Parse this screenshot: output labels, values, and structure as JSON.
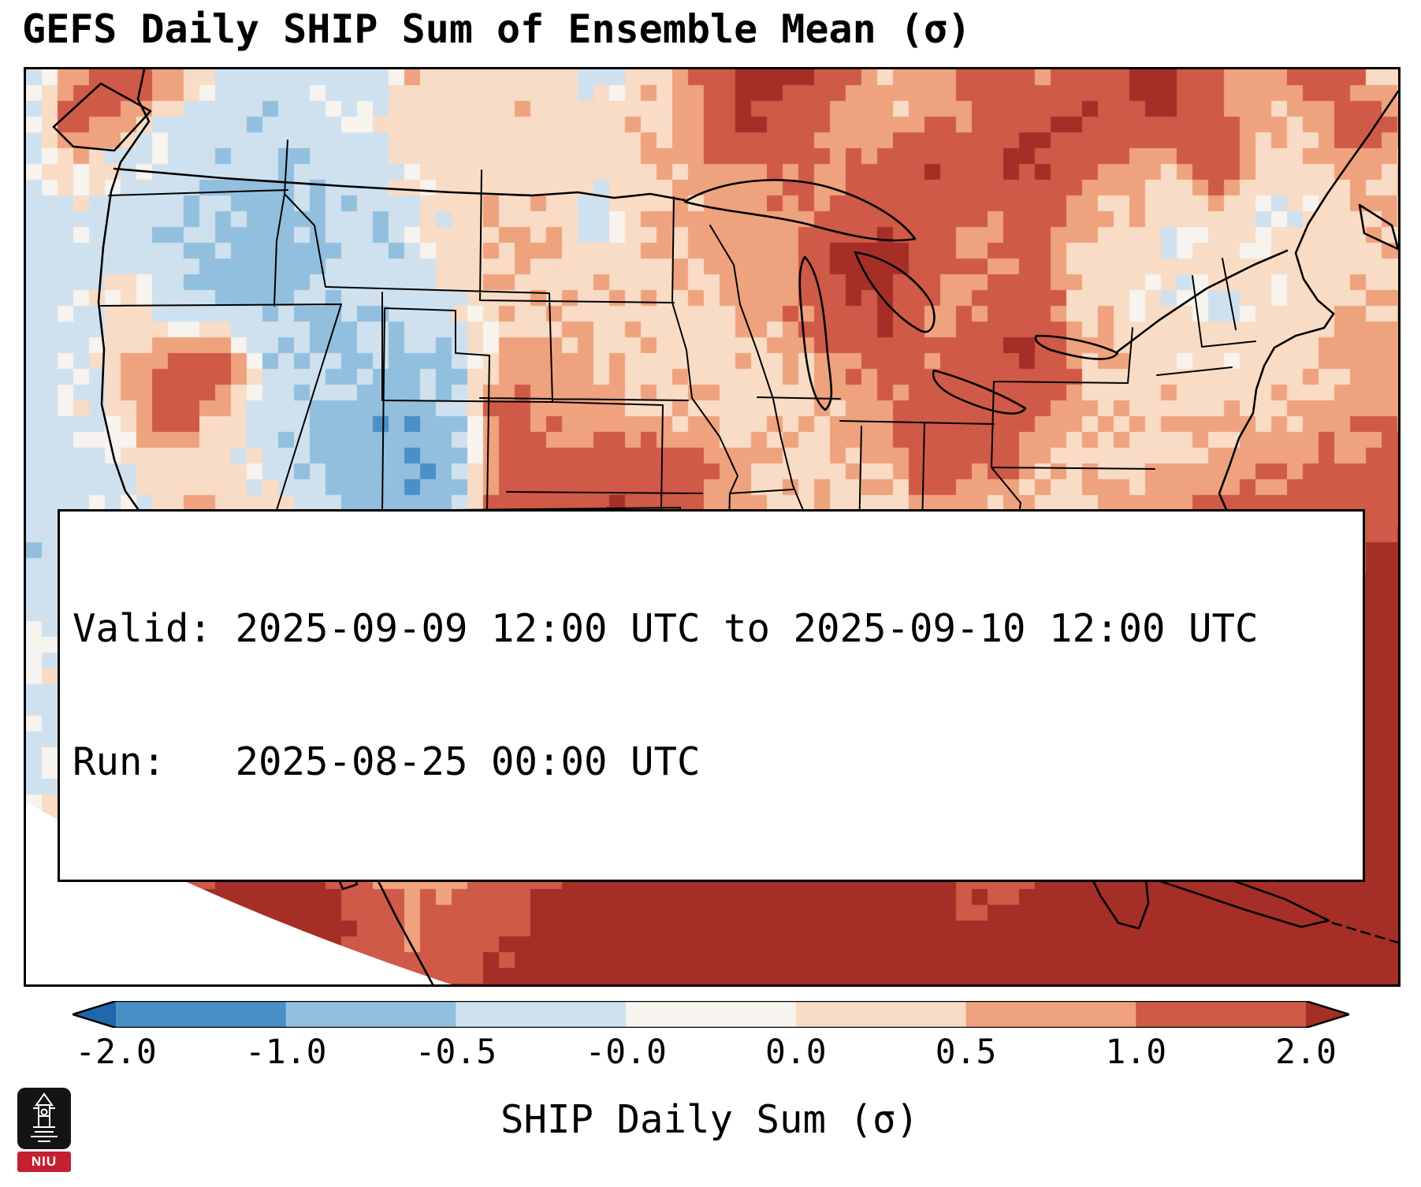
{
  "title": "GEFS Daily SHIP Sum of Ensemble Mean (σ)",
  "info_box": {
    "line1": "Valid: 2025-09-09 12:00 UTC to 2025-09-10 12:00 UTC",
    "line2": "Run:   2025-08-25 00:00 UTC"
  },
  "logo": {
    "text": "NIU",
    "bg": "#141414",
    "accent": "#c42032"
  },
  "chart_data": {
    "type": "heatmap",
    "title": "GEFS Daily SHIP Sum of Ensemble Mean (σ)",
    "region": "Contiguous United States with state borders, Mexico, Gulf of Mexico and western Atlantic",
    "colorbar_label": "SHIP Daily Sum (σ)",
    "colorbar_ticks": [
      "-2.0",
      "-1.0",
      "-0.5",
      "-0.0",
      "0.0",
      "0.5",
      "1.0",
      "2.0"
    ],
    "levels": [
      -2,
      -1,
      -0.5,
      -0.05,
      0.05,
      0.5,
      1,
      2
    ],
    "colors": [
      "#2166ac",
      "#4a90c6",
      "#92bfdd",
      "#cfe1ee",
      "#f7f3ee",
      "#f9dcc5",
      "#efa27e",
      "#cf5a47",
      "#a52f26"
    ],
    "valid": "2025-09-09 12:00 UTC to 2025-09-10 12:00 UTC",
    "run": "2025-08-25 00:00 UTC",
    "grid": {
      "cols": 30,
      "rows": 20,
      "approx": true,
      "values": [
        [
          -0.3,
          0.4,
          2.0,
          1.0,
          -0.2,
          -0.3,
          -0.2,
          -0.3,
          0.3,
          0.4,
          0.3,
          0.4,
          -0.2,
          0.4,
          1.0,
          2.4,
          2.6,
          1.4,
          0.6,
          0.8,
          1.6,
          0.8,
          1.2,
          2.4,
          2.2,
          1.0,
          0.4,
          1.6,
          0.6,
          -0.2
        ],
        [
          -0.3,
          1.4,
          0.8,
          -0.2,
          -0.3,
          -0.3,
          -0.3,
          -0.2,
          0.3,
          0.3,
          0.3,
          0.3,
          0.3,
          0.4,
          0.8,
          2.2,
          1.6,
          0.8,
          0.6,
          0.8,
          1.0,
          1.8,
          2.4,
          1.6,
          2.2,
          1.4,
          0.4,
          0.8,
          1.8,
          0.4
        ],
        [
          -0.3,
          0.3,
          -0.2,
          -0.3,
          -0.4,
          -0.5,
          -0.4,
          -0.3,
          0.2,
          0.4,
          0.3,
          0.3,
          0.3,
          0.5,
          0.8,
          1.0,
          1.2,
          0.8,
          1.4,
          2.0,
          1.6,
          2.2,
          1.2,
          0.8,
          0.6,
          1.6,
          0.3,
          0.3,
          0.6,
          0.3
        ],
        [
          -0.3,
          -0.2,
          -0.3,
          -0.3,
          -0.5,
          -0.7,
          -0.6,
          -0.4,
          -0.2,
          0.3,
          0.4,
          0.3,
          -0.2,
          0.4,
          0.6,
          0.8,
          0.8,
          1.2,
          1.8,
          1.4,
          1.0,
          1.4,
          0.8,
          0.4,
          0.2,
          0.3,
          -0.2,
          0.3,
          0.4,
          0.2
        ],
        [
          -0.3,
          -0.3,
          -0.2,
          -0.3,
          -0.6,
          -0.8,
          -0.6,
          -0.3,
          -0.3,
          0.3,
          0.4,
          0.4,
          0.3,
          0.4,
          0.5,
          0.6,
          0.8,
          2.2,
          2.4,
          1.2,
          0.8,
          1.2,
          0.4,
          0.2,
          -0.2,
          0.2,
          0.2,
          0.3,
          0.3,
          0.4
        ],
        [
          -0.3,
          -0.2,
          0.3,
          -0.3,
          -0.4,
          -0.6,
          -0.5,
          -0.4,
          -0.4,
          -0.2,
          0.3,
          0.4,
          0.4,
          0.3,
          0.4,
          0.5,
          0.8,
          1.8,
          2.2,
          0.8,
          1.2,
          1.6,
          0.4,
          0.2,
          0.2,
          -0.2,
          0.2,
          0.4,
          0.6,
          0.6
        ],
        [
          -0.3,
          -0.2,
          0.4,
          1.2,
          1.4,
          -0.3,
          -0.5,
          -0.6,
          -0.6,
          -0.4,
          0.6,
          0.8,
          0.4,
          0.4,
          0.3,
          0.3,
          0.4,
          0.8,
          1.4,
          1.0,
          1.8,
          2.2,
          0.8,
          0.3,
          0.2,
          0.2,
          0.3,
          0.4,
          0.8,
          0.8
        ],
        [
          -0.3,
          -0.2,
          0.3,
          1.6,
          0.6,
          -0.3,
          -0.4,
          -0.7,
          -0.8,
          -0.5,
          1.4,
          0.8,
          0.6,
          0.4,
          0.3,
          0.4,
          0.4,
          0.6,
          0.8,
          1.2,
          2.0,
          1.2,
          0.6,
          0.3,
          0.4,
          0.3,
          0.4,
          0.6,
          0.8,
          1.0
        ],
        [
          -0.3,
          -0.2,
          -0.2,
          0.4,
          0.3,
          -0.2,
          -0.4,
          -0.8,
          -1.3,
          -0.6,
          1.2,
          1.4,
          1.2,
          1.6,
          1.2,
          0.6,
          0.3,
          0.4,
          0.6,
          1.4,
          1.0,
          0.8,
          0.4,
          0.4,
          0.6,
          0.6,
          0.8,
          1.0,
          1.2,
          1.4
        ],
        [
          -0.3,
          -0.2,
          -0.2,
          0.3,
          0.3,
          0.3,
          -0.3,
          -0.7,
          -0.8,
          -0.4,
          1.6,
          1.2,
          2.2,
          1.8,
          1.2,
          0.6,
          0.4,
          0.3,
          0.4,
          0.8,
          0.6,
          0.4,
          0.4,
          0.6,
          0.8,
          1.0,
          1.2,
          1.4,
          1.6,
          1.8
        ],
        [
          -0.3,
          -0.2,
          0.2,
          0.3,
          0.4,
          0.3,
          -0.3,
          -0.5,
          -0.6,
          -0.3,
          1.4,
          1.0,
          1.2,
          0.8,
          0.6,
          0.4,
          -0.2,
          -0.3,
          0.3,
          0.4,
          0.3,
          0.3,
          0.4,
          0.8,
          1.2,
          1.4,
          1.6,
          1.8,
          2.0,
          2.2
        ],
        [
          -0.3,
          0.2,
          0.3,
          0.4,
          0.3,
          0.4,
          -0.3,
          -0.4,
          -0.4,
          -0.2,
          1.2,
          0.8,
          0.8,
          0.6,
          0.4,
          0.3,
          -0.4,
          -0.5,
          -0.3,
          0.3,
          0.3,
          0.4,
          0.6,
          1.0,
          1.6,
          1.8,
          2.0,
          2.2,
          2.4,
          2.4
        ],
        [
          -0.2,
          0.2,
          0.3,
          0.4,
          0.6,
          1.4,
          0.4,
          -0.3,
          -0.3,
          0.2,
          0.8,
          0.8,
          0.6,
          0.4,
          0.4,
          0.3,
          -0.3,
          -0.4,
          0.2,
          0.3,
          0.4,
          0.6,
          0.8,
          1.4,
          2.0,
          2.2,
          2.4,
          2.6,
          2.6,
          2.6
        ],
        [
          -0.2,
          -0.2,
          0.3,
          0.4,
          0.8,
          2.2,
          1.2,
          0.3,
          -0.2,
          0.3,
          0.6,
          0.8,
          0.6,
          0.6,
          0.4,
          0.4,
          0.3,
          0.3,
          0.4,
          0.4,
          0.8,
          1.2,
          1.0,
          1.8,
          2.4,
          2.6,
          2.6,
          2.6,
          2.6,
          2.6
        ],
        [
          -0.2,
          -0.2,
          0.2,
          0.4,
          1.2,
          2.6,
          1.8,
          0.4,
          0.3,
          0.4,
          0.6,
          0.8,
          0.8,
          1.0,
          1.2,
          1.4,
          1.4,
          1.4,
          1.2,
          1.2,
          1.4,
          1.2,
          1.4,
          2.2,
          2.6,
          2.6,
          2.6,
          2.6,
          2.6,
          2.6
        ],
        [
          -0.2,
          0.2,
          0.3,
          0.4,
          1.8,
          2.6,
          2.2,
          0.8,
          0.4,
          0.6,
          0.8,
          1.0,
          1.4,
          1.8,
          2.0,
          2.2,
          2.0,
          1.8,
          1.6,
          1.4,
          1.2,
          1.4,
          2.0,
          2.6,
          2.6,
          2.6,
          2.6,
          2.6,
          2.6,
          2.6
        ],
        [
          0.2,
          0.3,
          0.3,
          0.6,
          2.2,
          2.6,
          2.4,
          1.2,
          0.6,
          0.8,
          1.2,
          1.6,
          2.2,
          2.4,
          2.6,
          2.6,
          2.6,
          2.4,
          2.2,
          1.8,
          1.6,
          1.8,
          2.4,
          2.6,
          2.6,
          2.6,
          2.6,
          2.6,
          2.6,
          2.6
        ],
        [
          0.2,
          0.3,
          0.4,
          0.8,
          2.4,
          2.6,
          2.6,
          1.6,
          0.8,
          1.2,
          1.6,
          2.2,
          2.6,
          2.6,
          2.6,
          2.6,
          2.6,
          2.6,
          2.6,
          2.2,
          2.0,
          2.2,
          2.6,
          2.6,
          2.6,
          2.6,
          2.6,
          2.6,
          2.6,
          2.6
        ],
        [
          0.2,
          0.3,
          0.4,
          1.0,
          2.6,
          2.6,
          2.6,
          2.0,
          1.2,
          1.6,
          2.0,
          2.6,
          2.6,
          2.6,
          2.6,
          2.6,
          2.6,
          2.6,
          2.6,
          2.6,
          2.4,
          2.6,
          2.6,
          2.6,
          2.6,
          2.6,
          2.6,
          2.6,
          2.6,
          2.6
        ],
        [
          0.3,
          0.4,
          0.6,
          1.2,
          2.6,
          2.6,
          2.6,
          2.4,
          1.6,
          2.0,
          2.4,
          2.6,
          2.6,
          2.6,
          2.6,
          2.6,
          2.6,
          2.6,
          2.6,
          2.6,
          2.6,
          2.6,
          2.6,
          2.6,
          2.6,
          2.6,
          2.6,
          2.6,
          2.6,
          2.6
        ]
      ]
    }
  }
}
